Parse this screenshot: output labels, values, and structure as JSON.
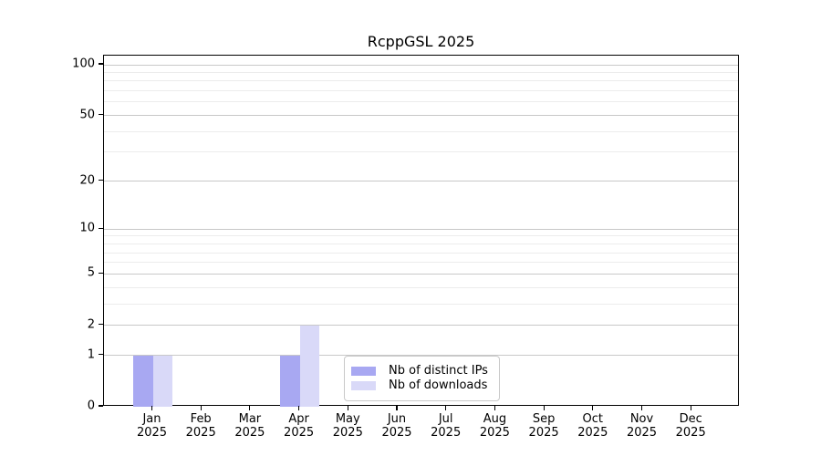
{
  "chart_data": {
    "type": "bar",
    "title": "RcppGSL 2025",
    "categories": [
      "Jan",
      "Feb",
      "Mar",
      "Apr",
      "May",
      "Jun",
      "Jul",
      "Aug",
      "Sep",
      "Oct",
      "Nov",
      "Dec"
    ],
    "x_year_label": "2025",
    "series": [
      {
        "name": "Nb of distinct IPs",
        "color": "#a8a8f2",
        "values": [
          1,
          0,
          0,
          1,
          0,
          0,
          0,
          0,
          0,
          0,
          0,
          0
        ]
      },
      {
        "name": "Nb of downloads",
        "color": "#d9d9f8",
        "values": [
          1,
          0,
          0,
          2,
          0,
          0,
          0,
          0,
          0,
          0,
          0,
          0
        ]
      }
    ],
    "yscale": "log1p",
    "ylim": [
      0,
      113
    ],
    "y_ticks": [
      0,
      1,
      2,
      5,
      10,
      20,
      50,
      100
    ],
    "y_minor_gridlines": [
      3,
      4,
      6,
      7,
      8,
      9,
      30,
      40,
      60,
      70,
      80,
      90
    ],
    "grid": "horizontal-only",
    "legend_position": "bottom-center-inside"
  },
  "colors": {
    "background": "#ffffff",
    "spine": "#000000",
    "major_grid": "#c8c8c8",
    "minor_grid": "#ececec",
    "legend_border": "#c9c9c9",
    "text": "#000000"
  }
}
